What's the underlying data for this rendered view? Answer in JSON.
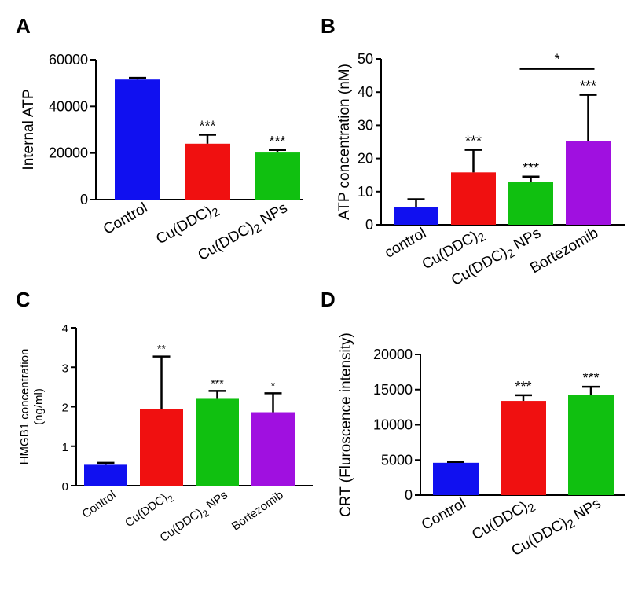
{
  "figure": {
    "panels": [
      "A",
      "B",
      "C",
      "D"
    ]
  },
  "chart_data": [
    {
      "panel": "A",
      "type": "bar",
      "ylabel": "Internal ATP",
      "ylim": [
        0,
        60000
      ],
      "yticks": [
        "0",
        "20000",
        "40000",
        "60000"
      ],
      "yticks_values": [
        0,
        20000,
        40000,
        60000
      ],
      "categories": [
        "Control",
        "Cu(DDC)2",
        "Cu(DDC)2 NPs"
      ],
      "values": [
        51500,
        24000,
        20200
      ],
      "errors": [
        700,
        3800,
        1100
      ],
      "significance": [
        "",
        "***",
        "***"
      ],
      "colors": [
        "#1010f0",
        "#f01010",
        "#10c010"
      ]
    },
    {
      "panel": "B",
      "type": "bar",
      "ylabel": "ATP concentration (nM)",
      "ylim": [
        0,
        50
      ],
      "yticks": [
        "0",
        "10",
        "20",
        "30",
        "40",
        "50"
      ],
      "yticks_values": [
        0,
        10,
        20,
        30,
        40,
        50
      ],
      "categories": [
        "control",
        "Cu(DDC)2",
        "Cu(DDC)2 NPs",
        "Bortezomib"
      ],
      "values": [
        5.3,
        15.8,
        12.9,
        25.2
      ],
      "errors": [
        2.4,
        6.8,
        1.6,
        14.0
      ],
      "significance": [
        "",
        "***",
        "***",
        "***"
      ],
      "bracket": {
        "from": 2,
        "to": 3,
        "y": 47,
        "label": "*"
      },
      "colors": [
        "#1010f0",
        "#f01010",
        "#10c010",
        "#a010e0"
      ]
    },
    {
      "panel": "C",
      "type": "bar",
      "ylabel": "HMGB1 concentration",
      "ylabel2": "(ng/ml)",
      "ylim": [
        0,
        4
      ],
      "yticks": [
        "0",
        "1",
        "2",
        "3",
        "4"
      ],
      "yticks_values": [
        0,
        1,
        2,
        3,
        4
      ],
      "categories": [
        "Control",
        "Cu(DDC)2",
        "Cu(DDC)2 NPs",
        "Bortezomib"
      ],
      "values": [
        0.53,
        1.95,
        2.2,
        1.86
      ],
      "errors": [
        0.05,
        1.32,
        0.2,
        0.48
      ],
      "significance": [
        "",
        "**",
        "***",
        "*"
      ],
      "colors": [
        "#1010f0",
        "#f01010",
        "#10c010",
        "#a010e0"
      ]
    },
    {
      "panel": "D",
      "type": "bar",
      "ylabel": "CRT (Fluroscence intensity)",
      "ylim": [
        0,
        20000
      ],
      "yticks": [
        "0",
        "5000",
        "10000",
        "15000",
        "20000"
      ],
      "yticks_values": [
        0,
        5000,
        10000,
        15000,
        20000
      ],
      "categories": [
        "Control",
        "Cu(DDC)2",
        "Cu(DDC)2 NPs"
      ],
      "values": [
        4600,
        13400,
        14300
      ],
      "errors": [
        120,
        800,
        1100
      ],
      "significance": [
        "",
        "***",
        "***"
      ],
      "colors": [
        "#1010f0",
        "#f01010",
        "#10c010"
      ]
    }
  ]
}
